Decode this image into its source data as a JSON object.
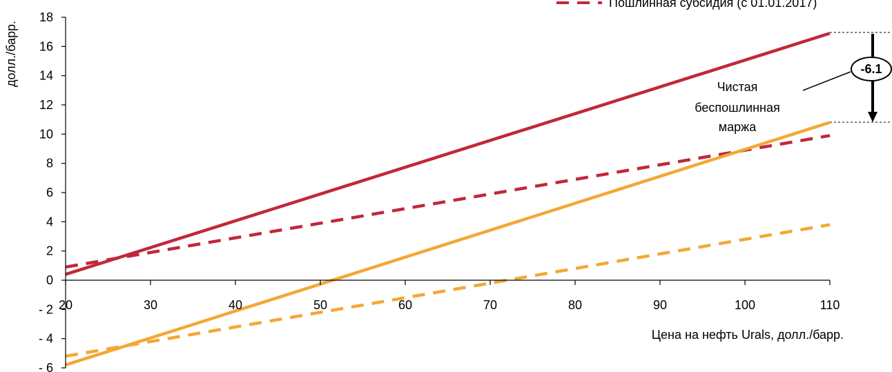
{
  "chart_data": {
    "type": "line",
    "ylabel": "долл./барр.",
    "xlabel": "Цена на нефть Urals, долл./барр.",
    "xlim": [
      20,
      110
    ],
    "ylim": [
      -6,
      18
    ],
    "x_ticks": [
      20,
      30,
      40,
      50,
      60,
      70,
      80,
      90,
      100,
      110
    ],
    "y_ticks": [
      {
        "value": 18,
        "label": "18"
      },
      {
        "value": 16,
        "label": "16"
      },
      {
        "value": 14,
        "label": "14"
      },
      {
        "value": 12,
        "label": "12"
      },
      {
        "value": 10,
        "label": "10"
      },
      {
        "value": 8,
        "label": "8"
      },
      {
        "value": 6,
        "label": "6"
      },
      {
        "value": 4,
        "label": "4"
      },
      {
        "value": 2,
        "label": "2"
      },
      {
        "value": 0,
        "label": "0"
      },
      {
        "value": -2,
        "label": "- 2"
      },
      {
        "value": -4,
        "label": "- 4"
      },
      {
        "value": -6,
        "label": "- 6"
      }
    ],
    "series": [
      {
        "name": "",
        "color": "#c0283a",
        "style": "solid",
        "x": [
          20,
          110
        ],
        "y": [
          0.4,
          16.9
        ]
      },
      {
        "name": "Пошлинная субсидия (с 01.01.2017)",
        "color": "#c0283a",
        "style": "dashed",
        "x": [
          20,
          110
        ],
        "y": [
          0.9,
          9.9
        ]
      },
      {
        "name": "",
        "color": "#f3a833",
        "style": "solid",
        "x": [
          20,
          110
        ],
        "y": [
          -5.8,
          10.8
        ]
      },
      {
        "name": "",
        "color": "#f3a833",
        "style": "dashed",
        "x": [
          20,
          110
        ],
        "y": [
          -5.2,
          3.8
        ]
      }
    ],
    "legend": {
      "entries": [
        "Пошлинная субсидия (с 01.01.2017)"
      ],
      "position": "top-right"
    },
    "annotation": {
      "badge": "-6.1",
      "text_lines": [
        "Чистая",
        "беспошлинная",
        "маржа"
      ],
      "y_top": 16.9,
      "y_bottom": 10.8
    }
  }
}
